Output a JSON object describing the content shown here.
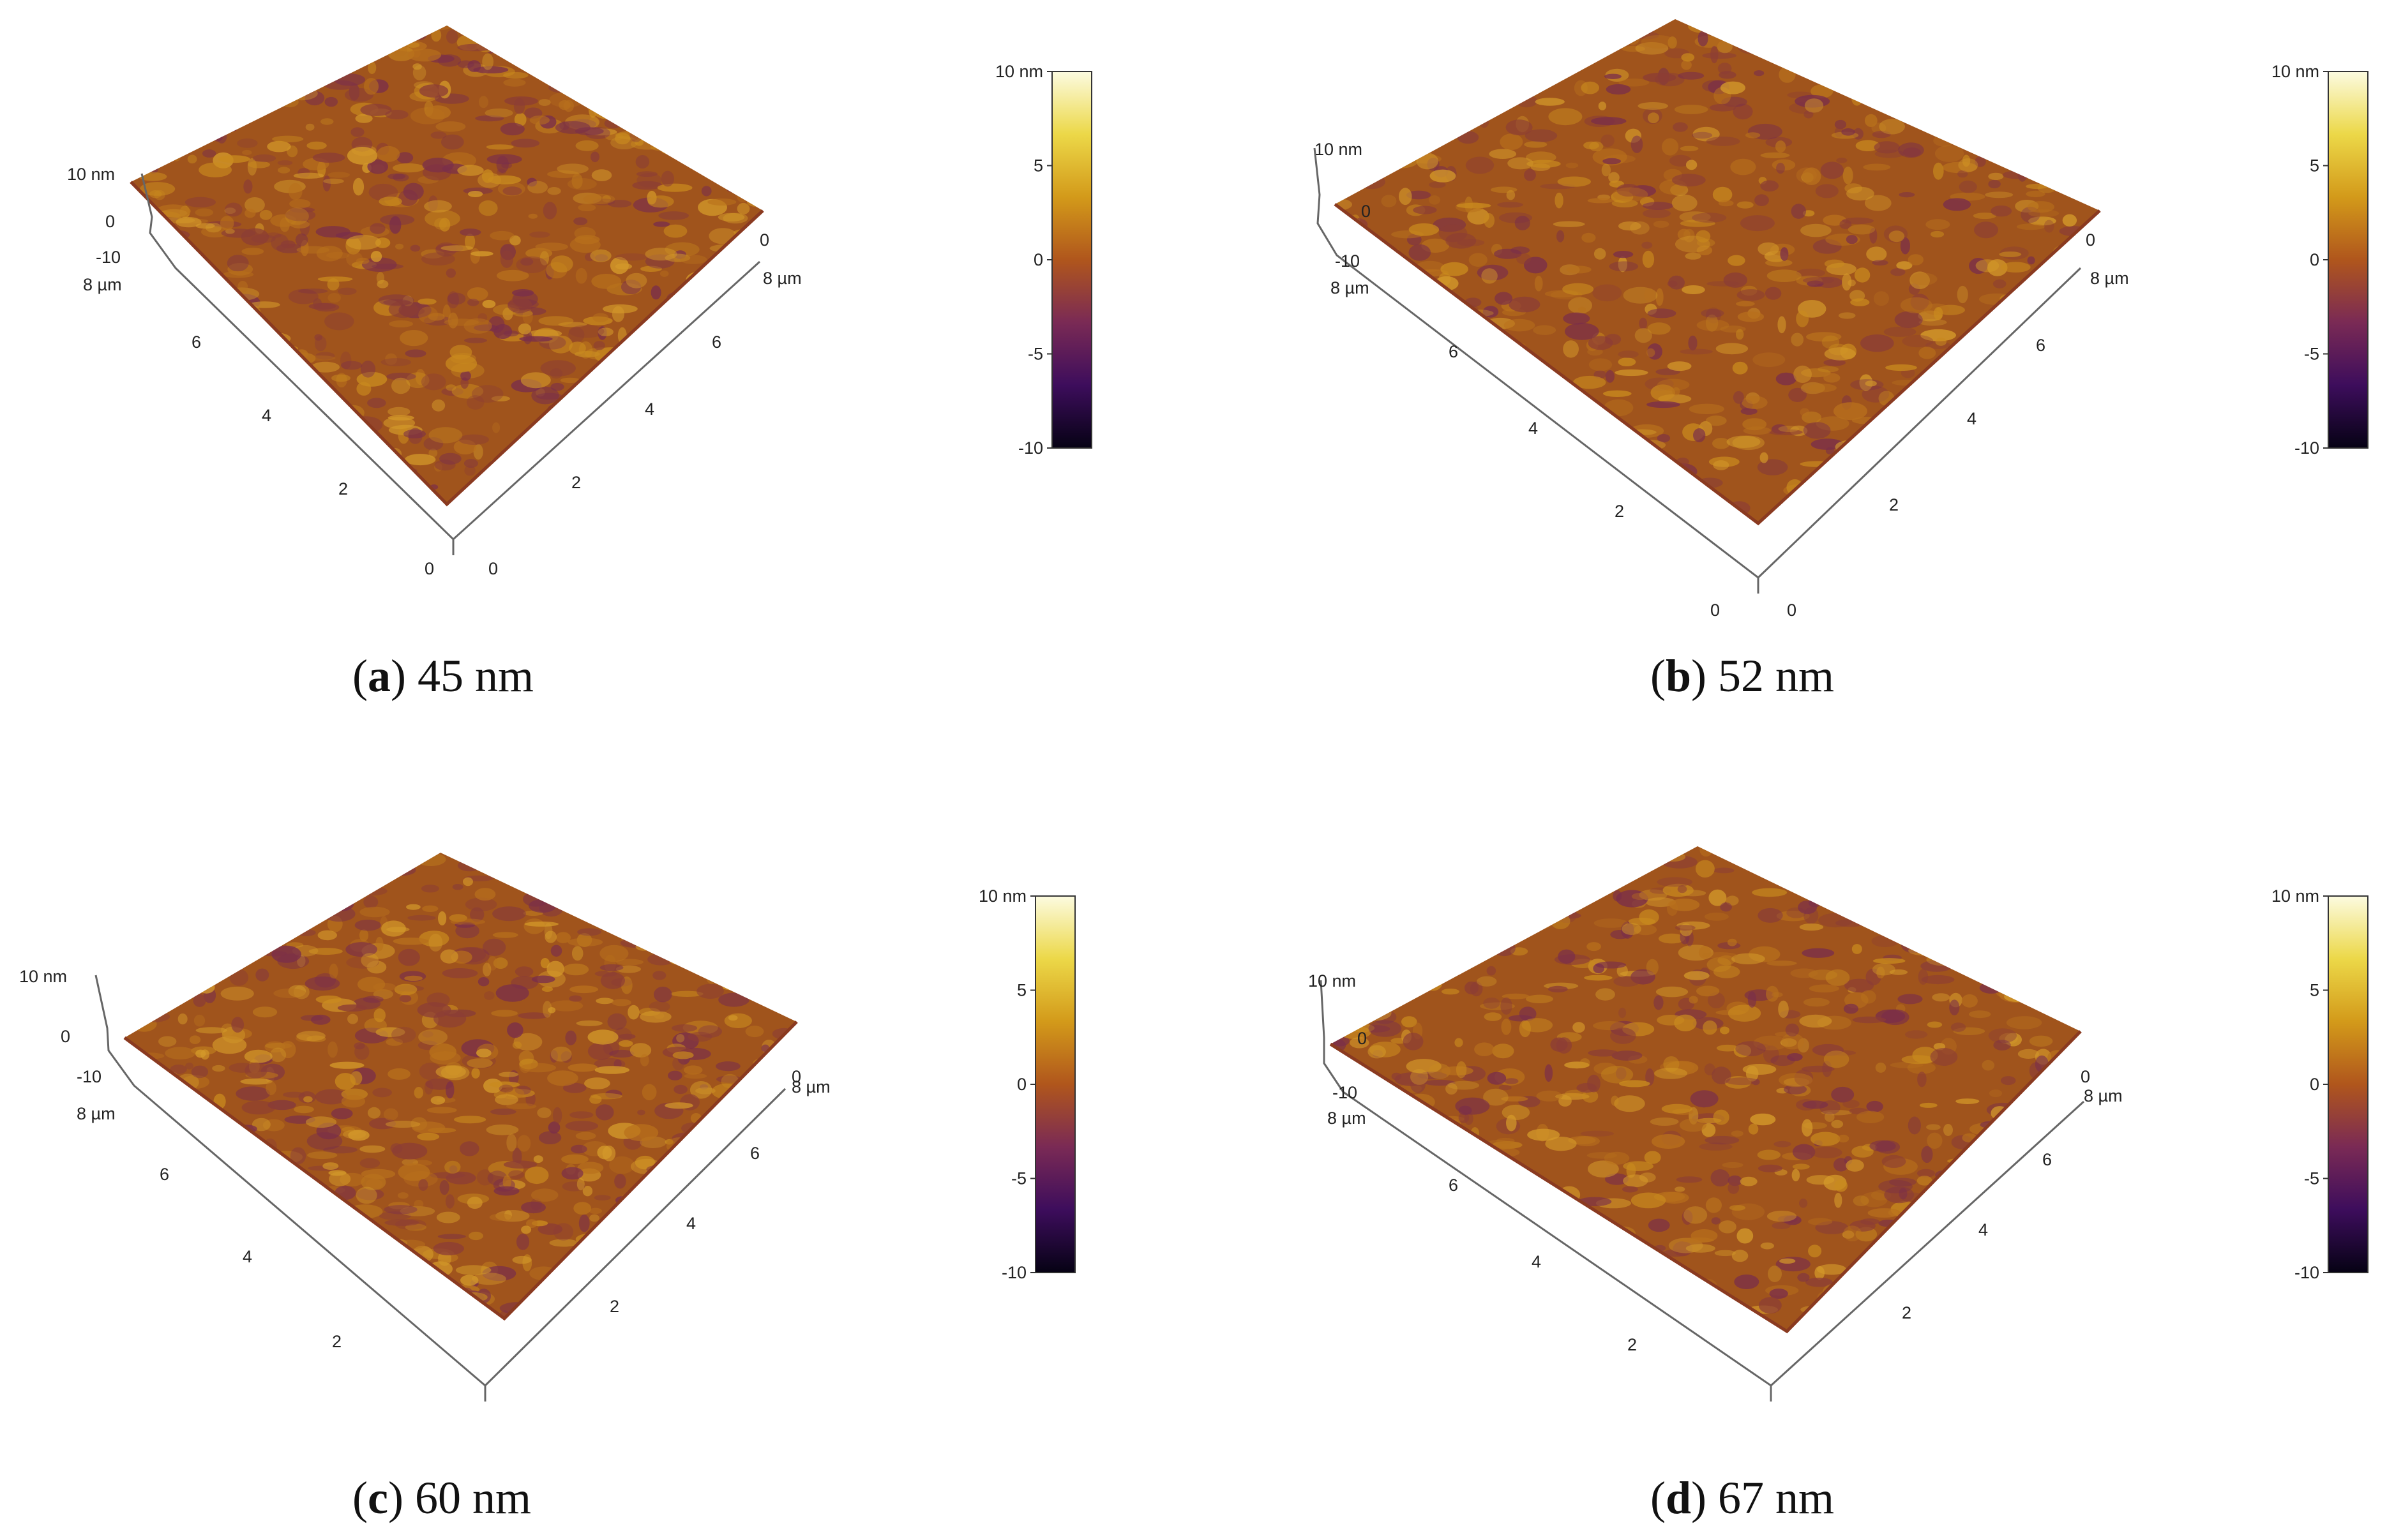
{
  "colors": {
    "surface_base": "#a0541c",
    "surface_high": "#c98a1e",
    "surface_low": "#7a2e4a",
    "axis": "#666666"
  },
  "colorbar": {
    "top_label": "10 nm",
    "ticks": [
      "5",
      "0",
      "-5",
      "-10"
    ],
    "gradient": [
      "#fcfbe0",
      "#ecd848",
      "#d39a1a",
      "#b0561c",
      "#7a2a55",
      "#3d0d5c",
      "#060214"
    ]
  },
  "axis_labels": {
    "z_top": "10 nm",
    "z_mid": "0",
    "z_bot": "-10",
    "left_top": "8 µm",
    "left_ticks": [
      "6",
      "4",
      "2",
      "0"
    ],
    "right_top": "0",
    "right_second": "8 µm",
    "right_ticks": [
      "6",
      "4",
      "2",
      "0"
    ]
  },
  "panels": [
    {
      "letter": "a",
      "value": "45 nm"
    },
    {
      "letter": "b",
      "value": "52 nm"
    },
    {
      "letter": "c",
      "value": "60 nm"
    },
    {
      "letter": "d",
      "value": "67 nm"
    }
  ]
}
